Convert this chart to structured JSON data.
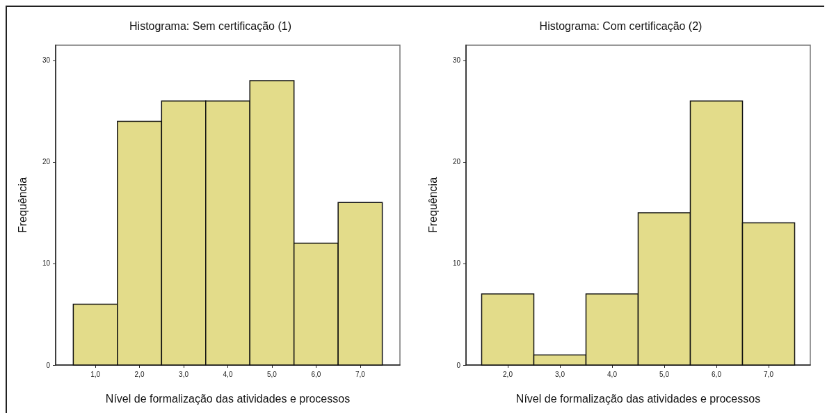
{
  "chart_data": [
    {
      "type": "histogram",
      "title": "Histograma: Sem certificação (1)",
      "xlabel": "Nível de formalização das atividades e processos",
      "ylabel": "Frequência",
      "bins": [
        0.5,
        1.5,
        2.5,
        3.5,
        4.5,
        5.5,
        6.5,
        7.5
      ],
      "values": [
        6,
        24,
        26,
        26,
        28,
        12,
        16
      ],
      "color": "#e3dc8a",
      "xlim": [
        0.1,
        7.9
      ],
      "xticks": [
        {
          "value": 1,
          "label": "1,0"
        },
        {
          "value": 2,
          "label": "2,0"
        },
        {
          "value": 3,
          "label": "3,0"
        },
        {
          "value": 4,
          "label": "4,0"
        },
        {
          "value": 5,
          "label": "5,0"
        },
        {
          "value": 6,
          "label": "6,0"
        },
        {
          "value": 7,
          "label": "7,0"
        }
      ],
      "ylim": [
        0,
        31.5
      ],
      "yticks": [
        0,
        10,
        20,
        30
      ]
    },
    {
      "type": "histogram",
      "title": "Histograma: Com certificação (2)",
      "xlabel": "Nível de formalização das atividades e processos",
      "ylabel": "Frequência",
      "bins": [
        1.5,
        2.5,
        3.5,
        4.5,
        5.5,
        6.5,
        7.5
      ],
      "values": [
        7,
        1,
        7,
        15,
        26,
        14
      ],
      "color": "#e3dc8a",
      "xlim": [
        1.2,
        7.8
      ],
      "xticks": [
        {
          "value": 2,
          "label": "2,0"
        },
        {
          "value": 3,
          "label": "3,0"
        },
        {
          "value": 4,
          "label": "4,0"
        },
        {
          "value": 5,
          "label": "5,0"
        },
        {
          "value": 6,
          "label": "6,0"
        },
        {
          "value": 7,
          "label": "7,0"
        }
      ],
      "ylim": [
        0,
        31.5
      ],
      "yticks": [
        0,
        10,
        20,
        30
      ]
    }
  ]
}
